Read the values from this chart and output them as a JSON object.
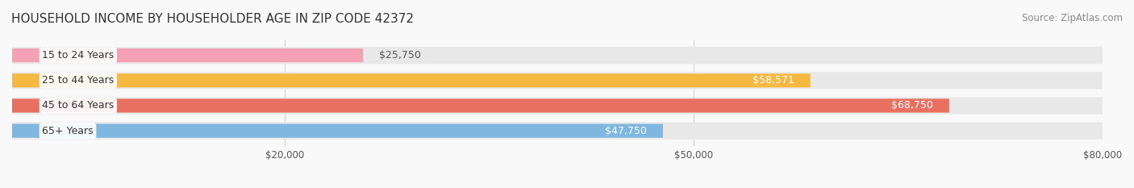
{
  "title": "HOUSEHOLD INCOME BY HOUSEHOLDER AGE IN ZIP CODE 42372",
  "source": "Source: ZipAtlas.com",
  "categories": [
    "15 to 24 Years",
    "25 to 44 Years",
    "45 to 64 Years",
    "65+ Years"
  ],
  "values": [
    25750,
    58571,
    68750,
    47750
  ],
  "bar_colors": [
    "#f4a0b5",
    "#f5b942",
    "#e87060",
    "#7eb8e0"
  ],
  "track_color": "#e8e8e8",
  "label_values": [
    "$25,750",
    "$58,571",
    "$68,750",
    "$47,750"
  ],
  "label_inside": [
    false,
    true,
    true,
    true
  ],
  "xmax": 80000,
  "xticks": [
    20000,
    50000,
    80000
  ],
  "xtick_labels": [
    "$20,000",
    "$50,000",
    "$80,000"
  ],
  "background_color": "#f9f9f9",
  "title_fontsize": 11,
  "source_fontsize": 8.5,
  "label_fontsize": 9,
  "cat_fontsize": 9
}
